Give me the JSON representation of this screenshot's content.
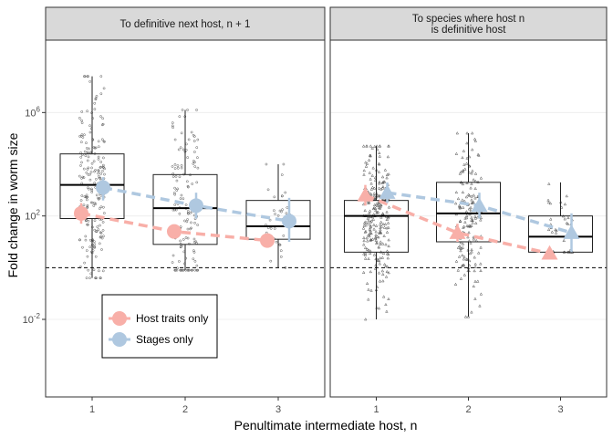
{
  "chart_data": {
    "type": "box",
    "y_scale": "log10",
    "ylim_log10": [
      -5,
      8.8
    ],
    "xlabel": "Penultimate intermediate host, n",
    "ylabel": "Fold change in worm size",
    "categories": [
      "1",
      "2",
      "3"
    ],
    "y_ticks": [
      {
        "log10": 6,
        "base": "10",
        "exp": "6"
      },
      {
        "log10": 2,
        "base": "10",
        "exp": "2"
      },
      {
        "log10": -2,
        "base": "10",
        "exp": "-2"
      }
    ],
    "reference_line_log10": 0,
    "legend": {
      "placement": "bottom-left inside left panel",
      "entries": [
        {
          "label": "Host traits only",
          "color": "#F8AFA8"
        },
        {
          "label": "Stages only",
          "color": "#AFC8E0"
        }
      ]
    },
    "panels": [
      {
        "title_lines": [
          "To definitive next host, n + 1"
        ],
        "marker": "circle",
        "boxes": [
          {
            "category": "1",
            "whisker_low": -0.4,
            "q1": 1.9,
            "median": 3.2,
            "q3": 4.4,
            "whisker_high": 7.4
          },
          {
            "category": "2",
            "whisker_low": -0.1,
            "q1": 0.9,
            "median": 2.3,
            "q3": 3.6,
            "whisker_high": 6.1
          },
          {
            "category": "3",
            "whisker_low": 0.0,
            "q1": 1.1,
            "median": 1.6,
            "q3": 2.6,
            "whisker_high": 4.0
          }
        ],
        "series": [
          {
            "name": "Host traits only",
            "values": [
              2.1,
              1.4,
              1.05
            ],
            "ci_low": [
              1.7,
              1.2,
              0.9
            ],
            "ci_high": [
              2.5,
              1.6,
              1.2
            ]
          },
          {
            "name": "Stages only",
            "values": [
              3.1,
              2.4,
              1.8
            ],
            "ci_low": [
              2.6,
              1.9,
              1.0
            ],
            "ci_high": [
              3.5,
              2.9,
              2.7
            ]
          }
        ],
        "jitter": {
          "n": 420,
          "seed": 11
        }
      },
      {
        "title_lines": [
          "To species where host n",
          "is definitive host"
        ],
        "marker": "triangle",
        "boxes": [
          {
            "category": "1",
            "whisker_low": -2.0,
            "q1": 0.6,
            "median": 2.0,
            "q3": 2.6,
            "whisker_high": 4.7
          },
          {
            "category": "2",
            "whisker_low": -1.9,
            "q1": 1.0,
            "median": 2.1,
            "q3": 3.3,
            "whisker_high": 5.2
          },
          {
            "category": "3",
            "whisker_low": 0.6,
            "q1": 0.6,
            "median": 1.2,
            "q3": 2.0,
            "whisker_high": 3.3
          }
        ],
        "series": [
          {
            "name": "Host traits only",
            "values": [
              2.8,
              1.35,
              0.55
            ],
            "ci_low": [
              2.4,
              1.0,
              0.4
            ],
            "ci_high": [
              3.2,
              1.7,
              0.7
            ]
          },
          {
            "name": "Stages only",
            "values": [
              2.9,
              2.4,
              1.35
            ],
            "ci_low": [
              2.5,
              1.9,
              0.6
            ],
            "ci_high": [
              3.3,
              2.9,
              2.1
            ]
          }
        ],
        "jitter": {
          "n": 480,
          "seed": 29
        }
      }
    ]
  }
}
